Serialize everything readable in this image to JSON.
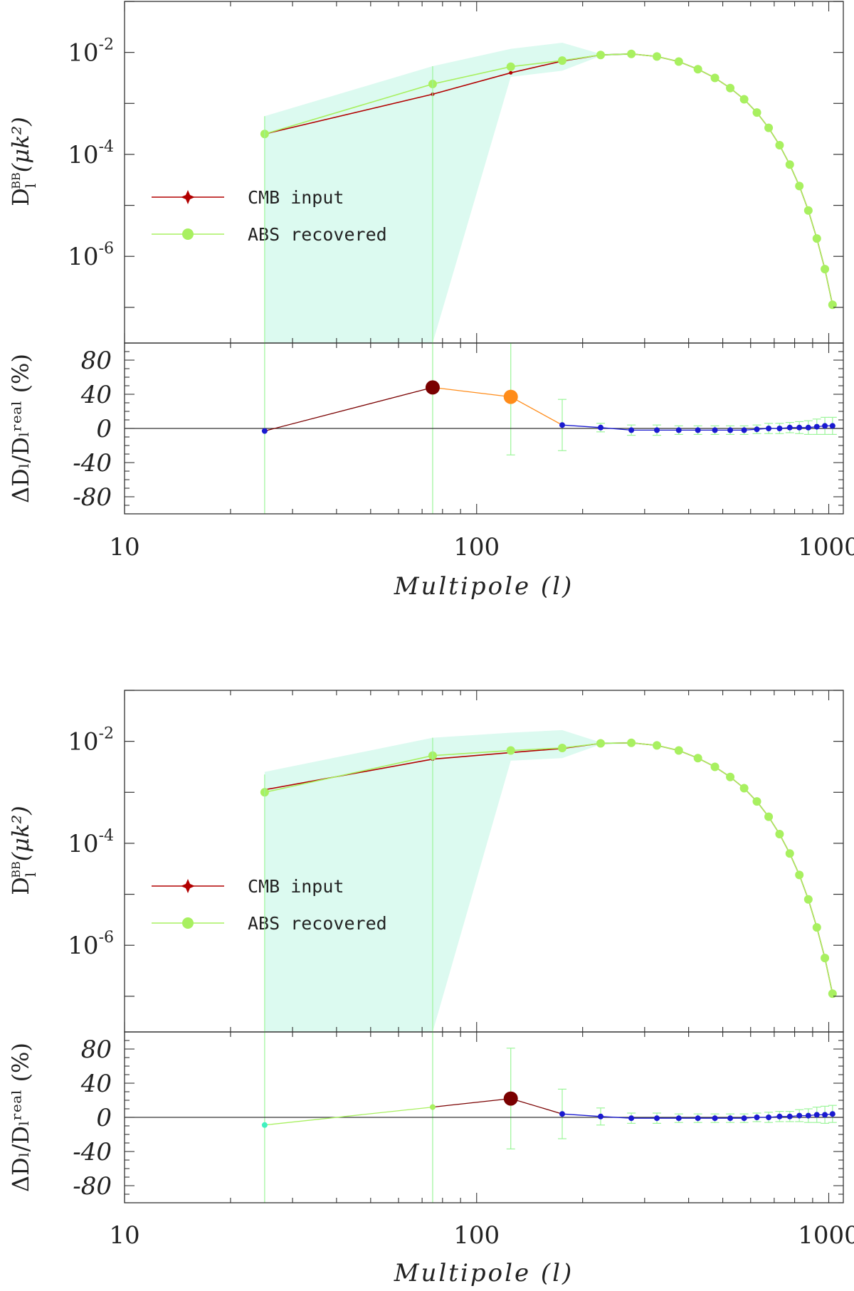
{
  "chart_data": [
    {
      "type": "line",
      "xscale": "log",
      "xlim": [
        10,
        1100
      ],
      "xticks": [
        "10",
        "100",
        "1000"
      ],
      "xlabel": "Multipole (l)",
      "top": {
        "yscale": "log",
        "ylim_log10": [
          -7.7,
          -1.0
        ],
        "yticks": [
          {
            "exp": -2,
            "label": "10",
            "sup": "-2"
          },
          {
            "exp": -4,
            "label": "10",
            "sup": "-4"
          },
          {
            "exp": -6,
            "label": "10",
            "sup": "-6"
          }
        ],
        "ylabel": {
          "main": "D",
          "sub": "l",
          "sup": "BB",
          "rest": "(μk²)"
        },
        "legend": [
          {
            "label": "CMB input",
            "color": "#b20000",
            "marker": "star"
          },
          {
            "label": "ABS recovered",
            "color": "#a8f060",
            "marker": "circle"
          }
        ],
        "band_color": "#dcfaf0",
        "series": [
          {
            "name": "CMB input",
            "color": "#b20000",
            "x": [
              25,
              75,
              125,
              175,
              225,
              275,
              325,
              375,
              425,
              475,
              525,
              575,
              625,
              675,
              725,
              775,
              825,
              875,
              925,
              975,
              1025
            ],
            "log10y": [
              -3.6,
              -2.82,
              -2.4,
              -2.17,
              -2.05,
              -2.03,
              -2.08,
              -2.18,
              -2.33,
              -2.5,
              -2.7,
              -2.92,
              -3.18,
              -3.48,
              -3.82,
              -4.2,
              -4.62,
              -5.1,
              -5.65,
              -6.25,
              -6.95
            ]
          },
          {
            "name": "ABS recovered",
            "color": "#a8f060",
            "x": [
              25,
              75,
              125,
              175,
              225,
              275,
              325,
              375,
              425,
              475,
              525,
              575,
              625,
              675,
              725,
              775,
              825,
              875,
              925,
              975,
              1025
            ],
            "log10y": [
              -3.6,
              -2.62,
              -2.28,
              -2.16,
              -2.05,
              -2.03,
              -2.08,
              -2.18,
              -2.33,
              -2.5,
              -2.7,
              -2.92,
              -3.18,
              -3.48,
              -3.82,
              -4.2,
              -4.62,
              -5.1,
              -5.65,
              -6.25,
              -6.95
            ]
          }
        ]
      },
      "bottom": {
        "ylim": [
          -100,
          100
        ],
        "yticks": [
          "80",
          "40",
          "0",
          "-40",
          "-80"
        ],
        "ylabel": "ΔDₗ/Dₗʳᵉᵃˡ (%)",
        "x": [
          25,
          75,
          125,
          175,
          225,
          275,
          325,
          375,
          425,
          475,
          525,
          575,
          625,
          675,
          725,
          775,
          825,
          875,
          925,
          975,
          1025
        ],
        "values": [
          -3,
          48,
          37,
          4,
          1,
          -2,
          -2,
          -2,
          -2,
          -2,
          -2,
          -2,
          -1,
          0,
          0,
          1,
          1,
          1,
          2,
          3,
          3
        ],
        "errors": [
          null,
          null,
          68,
          30,
          5,
          6,
          6,
          5,
          5,
          5,
          5,
          5,
          5,
          6,
          6,
          6,
          7,
          8,
          9,
          10,
          10
        ],
        "point_colors": [
          "#1a1ad0",
          "#7a0000",
          "#ff8c1a",
          "#1a1ad0",
          "#1a1ad0",
          "#1a1ad0",
          "#1a1ad0",
          "#1a1ad0",
          "#1a1ad0",
          "#1a1ad0",
          "#1a1ad0",
          "#1a1ad0",
          "#1a1ad0",
          "#1a1ad0",
          "#1a1ad0",
          "#1a1ad0",
          "#1a1ad0",
          "#1a1ad0",
          "#1a1ad0",
          "#1a1ad0",
          "#1a1ad0"
        ],
        "point_large": [
          false,
          true,
          true,
          false,
          false,
          false,
          false,
          false,
          false,
          false,
          false,
          false,
          false,
          false,
          false,
          false,
          false,
          false,
          false,
          false,
          false
        ]
      }
    },
    {
      "type": "line",
      "xscale": "log",
      "xlim": [
        10,
        1100
      ],
      "xticks": [
        "10",
        "100",
        "1000"
      ],
      "xlabel": "Multipole (l)",
      "top": {
        "yscale": "log",
        "ylim_log10": [
          -7.7,
          -1.0
        ],
        "yticks": [
          {
            "exp": -2,
            "label": "10",
            "sup": "-2"
          },
          {
            "exp": -4,
            "label": "10",
            "sup": "-4"
          },
          {
            "exp": -6,
            "label": "10",
            "sup": "-6"
          }
        ],
        "ylabel": {
          "main": "D",
          "sub": "l",
          "sup": "BB",
          "rest": "(μk²)"
        },
        "legend": [
          {
            "label": "CMB input",
            "color": "#b20000",
            "marker": "star"
          },
          {
            "label": "ABS recovered",
            "color": "#a8f060",
            "marker": "circle"
          }
        ],
        "band_color": "#dcfaf0",
        "series": [
          {
            "name": "CMB input",
            "color": "#b20000",
            "x": [
              25,
              75,
              125,
              175,
              225,
              275,
              325,
              375,
              425,
              475,
              525,
              575,
              625,
              675,
              725,
              775,
              825,
              875,
              925,
              975,
              1025
            ],
            "log10y": [
              -2.95,
              -2.35,
              -2.22,
              -2.14,
              -2.04,
              -2.03,
              -2.08,
              -2.18,
              -2.33,
              -2.5,
              -2.7,
              -2.92,
              -3.18,
              -3.48,
              -3.82,
              -4.2,
              -4.62,
              -5.1,
              -5.65,
              -6.25,
              -6.95
            ]
          },
          {
            "name": "ABS recovered",
            "color": "#a8f060",
            "x": [
              25,
              75,
              125,
              175,
              225,
              275,
              325,
              375,
              425,
              475,
              525,
              575,
              625,
              675,
              725,
              775,
              825,
              875,
              925,
              975,
              1025
            ],
            "log10y": [
              -3.0,
              -2.28,
              -2.18,
              -2.13,
              -2.04,
              -2.03,
              -2.08,
              -2.18,
              -2.33,
              -2.5,
              -2.7,
              -2.92,
              -3.18,
              -3.48,
              -3.82,
              -4.2,
              -4.62,
              -5.1,
              -5.65,
              -6.25,
              -6.95
            ]
          }
        ]
      },
      "bottom": {
        "ylim": [
          -100,
          100
        ],
        "yticks": [
          "80",
          "40",
          "0",
          "-40",
          "-80"
        ],
        "ylabel": "ΔDₗ/Dₗʳᵉᵃˡ (%)",
        "x": [
          25,
          75,
          125,
          175,
          225,
          275,
          325,
          375,
          425,
          475,
          525,
          575,
          625,
          675,
          725,
          775,
          825,
          875,
          925,
          975,
          1025
        ],
        "values": [
          -9,
          12,
          22,
          4,
          1,
          -1,
          -1,
          -1,
          -1,
          -1,
          -1,
          -1,
          0,
          0,
          1,
          1,
          2,
          2,
          3,
          3,
          4
        ],
        "errors": [
          null,
          null,
          59,
          29,
          10,
          6,
          6,
          5,
          5,
          5,
          5,
          5,
          5,
          6,
          6,
          6,
          7,
          8,
          9,
          10,
          10
        ],
        "point_colors": [
          "#40f0c0",
          "#a8f060",
          "#7a0000",
          "#1a1ad0",
          "#1a1ad0",
          "#1a1ad0",
          "#1a1ad0",
          "#1a1ad0",
          "#1a1ad0",
          "#1a1ad0",
          "#1a1ad0",
          "#1a1ad0",
          "#1a1ad0",
          "#1a1ad0",
          "#1a1ad0",
          "#1a1ad0",
          "#1a1ad0",
          "#1a1ad0",
          "#1a1ad0",
          "#1a1ad0",
          "#1a1ad0"
        ],
        "point_large": [
          false,
          false,
          true,
          false,
          false,
          false,
          false,
          false,
          false,
          false,
          false,
          false,
          false,
          false,
          false,
          false,
          false,
          false,
          false,
          false,
          false
        ]
      }
    }
  ]
}
